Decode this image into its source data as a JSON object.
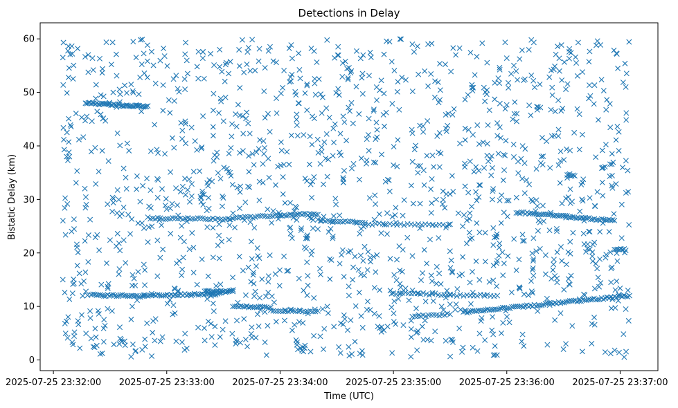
{
  "chart_data": {
    "type": "scatter",
    "title": "Detections in Delay",
    "xlabel": "Time (UTC)",
    "ylabel": "Bistatic Delay (km)",
    "marker": "x",
    "color": "#1f77b4",
    "grid": false,
    "xlim": [
      "2025-07-25 23:31:53",
      "2025-07-25 23:37:20"
    ],
    "ylim": [
      -2,
      63
    ],
    "x_ticks": [
      "2025-07-25 23:32:00",
      "2025-07-25 23:33:00",
      "2025-07-25 23:34:00",
      "2025-07-25 23:35:00",
      "2025-07-25 23:36:00",
      "2025-07-25 23:37:00"
    ],
    "y_ticks": [
      0,
      10,
      20,
      30,
      40,
      50,
      60
    ],
    "tracks": [
      {
        "start": "2025-07-25 23:32:17",
        "end": "2025-07-25 23:32:50",
        "y_start": 48.0,
        "y_end": 47.3,
        "count": 45
      },
      {
        "start": "2025-07-25 23:32:20",
        "end": "2025-07-25 23:32:48",
        "y_start": 12.2,
        "y_end": 11.9,
        "count": 30
      },
      {
        "start": "2025-07-25 23:32:48",
        "end": "2025-07-25 23:33:28",
        "y_start": 12.1,
        "y_end": 12.3,
        "count": 40
      },
      {
        "start": "2025-07-25 23:33:20",
        "end": "2025-07-25 23:33:35",
        "y_start": 12.8,
        "y_end": 12.8,
        "count": 20
      },
      {
        "start": "2025-07-25 23:33:35",
        "end": "2025-07-25 23:33:55",
        "y_start": 10.0,
        "y_end": 9.8,
        "count": 20
      },
      {
        "start": "2025-07-25 23:33:55",
        "end": "2025-07-25 23:34:20",
        "y_start": 9.3,
        "y_end": 9.0,
        "count": 20
      },
      {
        "start": "2025-07-25 23:32:50",
        "end": "2025-07-25 23:33:35",
        "y_start": 26.5,
        "y_end": 26.3,
        "count": 35
      },
      {
        "start": "2025-07-25 23:33:35",
        "end": "2025-07-25 23:34:00",
        "y_start": 26.5,
        "y_end": 27.0,
        "count": 20
      },
      {
        "start": "2025-07-25 23:34:00",
        "end": "2025-07-25 23:34:20",
        "y_start": 27.0,
        "y_end": 27.3,
        "count": 20
      },
      {
        "start": "2025-07-25 23:34:20",
        "end": "2025-07-25 23:34:45",
        "y_start": 26.1,
        "y_end": 25.7,
        "count": 20
      },
      {
        "start": "2025-07-25 23:34:45",
        "end": "2025-07-25 23:35:30",
        "y_start": 25.4,
        "y_end": 25.2,
        "count": 25
      },
      {
        "start": "2025-07-25 23:35:00",
        "end": "2025-07-25 23:35:30",
        "y_start": 12.5,
        "y_end": 12.2,
        "count": 20
      },
      {
        "start": "2025-07-25 23:35:10",
        "end": "2025-07-25 23:35:30",
        "y_start": 8.1,
        "y_end": 8.6,
        "count": 15
      },
      {
        "start": "2025-07-25 23:35:30",
        "end": "2025-07-25 23:35:55",
        "y_start": 12.1,
        "y_end": 12.1,
        "count": 15
      },
      {
        "start": "2025-07-25 23:35:37",
        "end": "2025-07-25 23:37:05",
        "y_start": 8.9,
        "y_end": 12.0,
        "count": 90
      },
      {
        "start": "2025-07-25 23:36:05",
        "end": "2025-07-25 23:36:57",
        "y_start": 27.6,
        "y_end": 26.0,
        "count": 55
      },
      {
        "start": "2025-07-25 23:36:57",
        "end": "2025-07-25 23:37:03",
        "y_start": 20.6,
        "y_end": 20.6,
        "count": 8
      },
      {
        "start": "2025-07-25 23:36:32",
        "end": "2025-07-25 23:36:36",
        "y_start": 34.5,
        "y_end": 34.5,
        "count": 6
      }
    ],
    "scatter_points": [
      [
        "2025-07-25 23:32:05",
        56.5
      ],
      [
        "2025-07-25 23:32:08",
        52.8
      ],
      [
        "2025-07-25 23:32:10",
        57.2
      ],
      [
        "2025-07-25 23:32:07",
        38.0
      ],
      [
        "2025-07-25 23:32:09",
        43.9
      ],
      [
        "2025-07-25 23:32:12",
        33.1
      ],
      [
        "2025-07-25 23:32:06",
        28.4
      ],
      [
        "2025-07-25 23:32:05",
        15.0
      ],
      [
        "2025-07-25 23:32:06",
        12.6
      ],
      [
        "2025-07-25 23:32:10",
        3.3
      ],
      [
        "2025-07-25 23:32:14",
        2.2
      ],
      [
        "2025-07-25 23:32:15",
        8.4
      ],
      [
        "2025-07-25 23:32:20",
        4.0
      ],
      [
        "2025-07-25 23:32:26",
        54.4
      ],
      [
        "2025-07-25 23:32:24",
        35.2
      ],
      [
        "2025-07-25 23:32:30",
        22.4
      ],
      [
        "2025-07-25 23:32:32",
        2.9
      ],
      [
        "2025-07-25 23:32:40",
        39.1
      ],
      [
        "2025-07-25 23:32:44",
        31.9
      ],
      [
        "2025-07-25 23:32:47",
        1.9
      ],
      [
        "2025-07-25 23:32:52",
        57.6
      ],
      [
        "2025-07-25 23:32:58",
        46.6
      ],
      [
        "2025-07-25 23:33:02",
        23.6
      ],
      [
        "2025-07-25 23:33:05",
        3.5
      ],
      [
        "2025-07-25 23:33:10",
        59.3
      ],
      [
        "2025-07-25 23:33:15",
        40.9
      ],
      [
        "2025-07-25 23:33:22",
        7.2
      ],
      [
        "2025-07-25 23:33:28",
        54.8
      ],
      [
        "2025-07-25 23:33:34",
        34.4
      ],
      [
        "2025-07-25 23:33:40",
        59.8
      ],
      [
        "2025-07-25 23:33:44",
        42.3
      ],
      [
        "2025-07-25 23:33:48",
        20.9
      ],
      [
        "2025-07-25 23:33:52",
        3.3
      ],
      [
        "2025-07-25 23:33:58",
        55.6
      ],
      [
        "2025-07-25 23:34:02",
        36.5
      ],
      [
        "2025-07-25 23:34:08",
        50.1
      ],
      [
        "2025-07-25 23:34:12",
        2.4
      ],
      [
        "2025-07-25 23:34:18",
        57.7
      ],
      [
        "2025-07-25 23:34:22",
        38.9
      ],
      [
        "2025-07-25 23:34:28",
        23.1
      ],
      [
        "2025-07-25 23:34:32",
        1.3
      ],
      [
        "2025-07-25 23:34:36",
        52.7
      ],
      [
        "2025-07-25 23:34:42",
        33.7
      ],
      [
        "2025-07-25 23:34:47",
        45.1
      ],
      [
        "2025-07-25 23:34:50",
        13.5
      ],
      [
        "2025-07-25 23:34:55",
        57.1
      ],
      [
        "2025-07-25 23:35:00",
        36.4
      ],
      [
        "2025-07-25 23:35:05",
        20.6
      ],
      [
        "2025-07-25 23:35:10",
        59.0
      ],
      [
        "2025-07-25 23:35:14",
        43.8
      ],
      [
        "2025-07-25 23:35:18",
        3.8
      ],
      [
        "2025-07-25 23:35:22",
        52.1
      ],
      [
        "2025-07-25 23:35:28",
        31.0
      ],
      [
        "2025-07-25 23:35:33",
        57.0
      ],
      [
        "2025-07-25 23:35:38",
        41.1
      ],
      [
        "2025-07-25 23:35:42",
        2.3
      ],
      [
        "2025-07-25 23:35:47",
        59.2
      ],
      [
        "2025-07-25 23:35:52",
        38.1
      ],
      [
        "2025-07-25 23:35:56",
        21.0
      ],
      [
        "2025-07-25 23:36:00",
        56.4
      ],
      [
        "2025-07-25 23:36:04",
        46.0
      ],
      [
        "2025-07-25 23:36:09",
        2.6
      ],
      [
        "2025-07-25 23:36:13",
        59.8
      ],
      [
        "2025-07-25 23:36:18",
        36.8
      ],
      [
        "2025-07-25 23:36:24",
        50.9
      ],
      [
        "2025-07-25 23:36:30",
        2.0
      ],
      [
        "2025-07-25 23:36:34",
        57.4
      ],
      [
        "2025-07-25 23:36:40",
        42.1
      ],
      [
        "2025-07-25 23:36:44",
        20.7
      ],
      [
        "2025-07-25 23:36:48",
        59.6
      ],
      [
        "2025-07-25 23:36:52",
        36.1
      ],
      [
        "2025-07-25 23:36:55",
        1.2
      ],
      [
        "2025-07-25 23:36:58",
        57.3
      ],
      [
        "2025-07-25 23:37:00",
        13.4
      ],
      [
        "2025-07-25 23:37:03",
        51.0
      ],
      [
        "2025-07-25 23:37:04",
        35.4
      ],
      [
        "2025-07-25 23:37:03",
        9.5
      ]
    ],
    "background_points_approx": 1400,
    "background_y_range": [
      0.5,
      60
    ]
  }
}
